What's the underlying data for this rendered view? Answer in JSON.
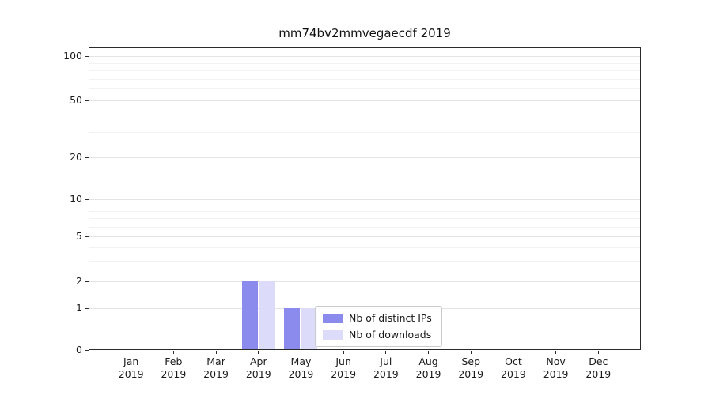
{
  "chart_data": {
    "type": "bar",
    "title": "mm74bv2mmvegaecdf 2019",
    "categories": [
      "Jan",
      "Feb",
      "Mar",
      "Apr",
      "May",
      "Jun",
      "Jul",
      "Aug",
      "Sep",
      "Oct",
      "Nov",
      "Dec"
    ],
    "year_label": "2019",
    "series": [
      {
        "name": "Nb of distinct IPs",
        "color": "#8b8bee",
        "values": [
          0,
          0,
          0,
          2,
          1,
          0,
          0,
          0,
          0,
          0,
          0,
          0
        ]
      },
      {
        "name": "Nb of downloads",
        "color": "#dcdcfa",
        "values": [
          0,
          0,
          0,
          2,
          1,
          0,
          0,
          0,
          0,
          0,
          0,
          0
        ]
      }
    ],
    "yticks": [
      0,
      1,
      2,
      5,
      10,
      20,
      50,
      100
    ],
    "ylim": [
      0,
      130
    ],
    "scale": "symlog",
    "grid": "horizontal",
    "legend_position": "lower center"
  }
}
